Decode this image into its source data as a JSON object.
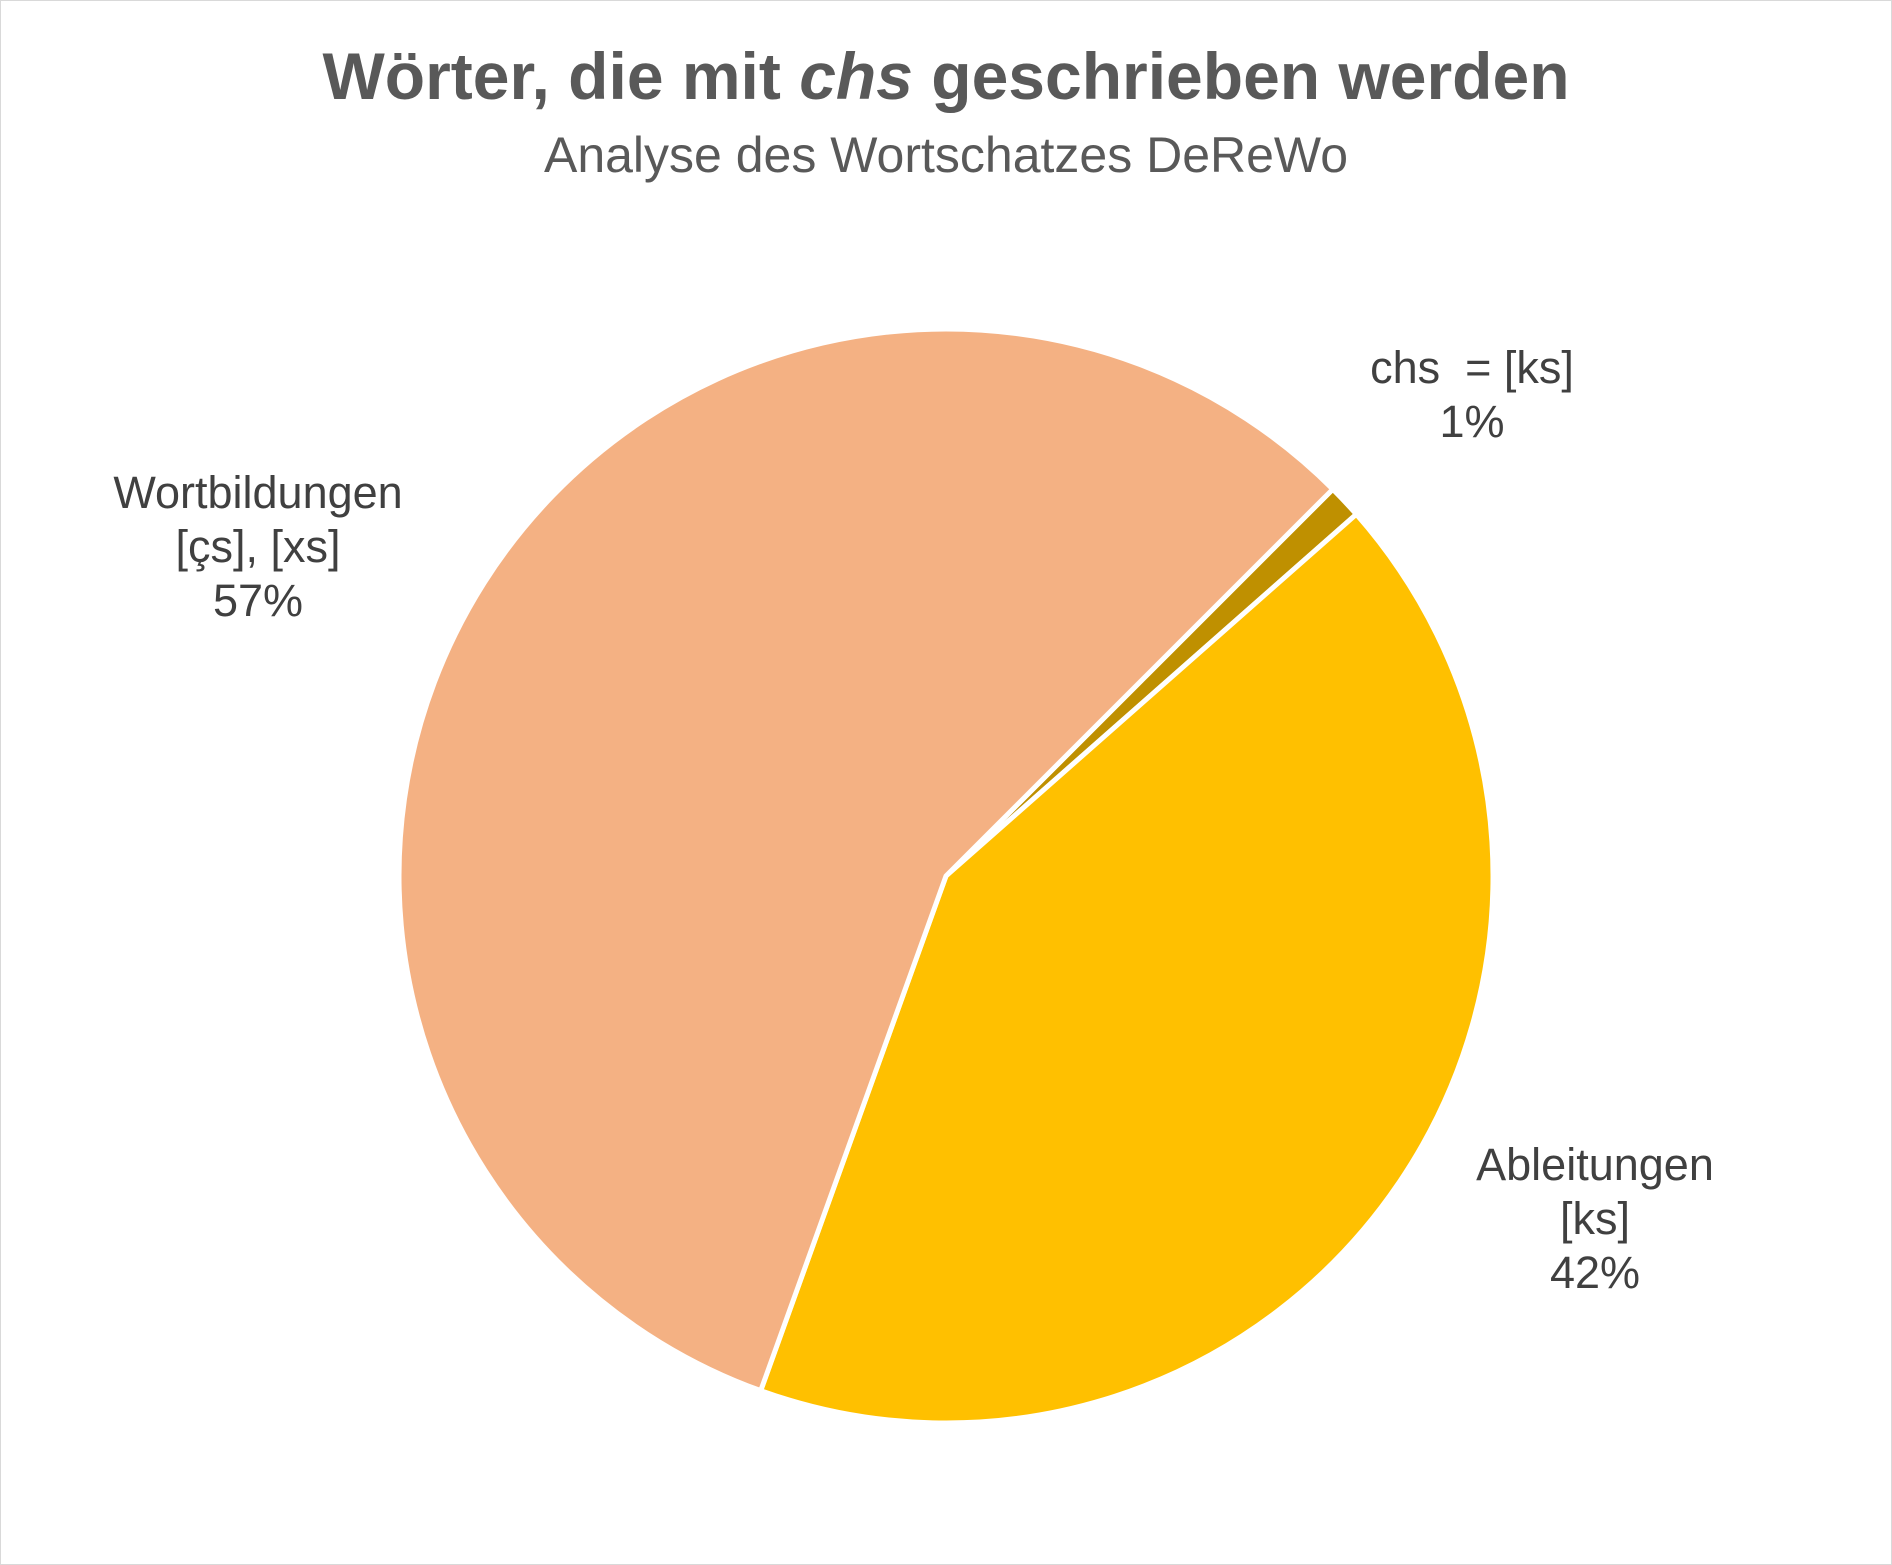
{
  "chart_data": {
    "type": "pie",
    "title": {
      "before": "Wörter, die mit ",
      "emphasis": "chs",
      "after": " geschrieben werden"
    },
    "subtitle": "Analyse des Wortschatzes DeReWo",
    "slices": [
      {
        "name_lines": [
          "chs  = [ks]"
        ],
        "value": 1,
        "value_label": "1%",
        "color": "#bf9000"
      },
      {
        "name_lines": [
          "Ableitungen",
          "[ks]"
        ],
        "value": 42,
        "value_label": "42%",
        "color": "#ffc000"
      },
      {
        "name_lines": [
          "Wortbildungen",
          "[çs], [xs]"
        ],
        "value": 57,
        "value_label": "57%",
        "color": "#f4b183"
      }
    ],
    "start_angle_deg": 45,
    "direction": "clockwise",
    "slice_separator_color": "#ffffff",
    "label_color": "#404040",
    "legend": "none"
  }
}
